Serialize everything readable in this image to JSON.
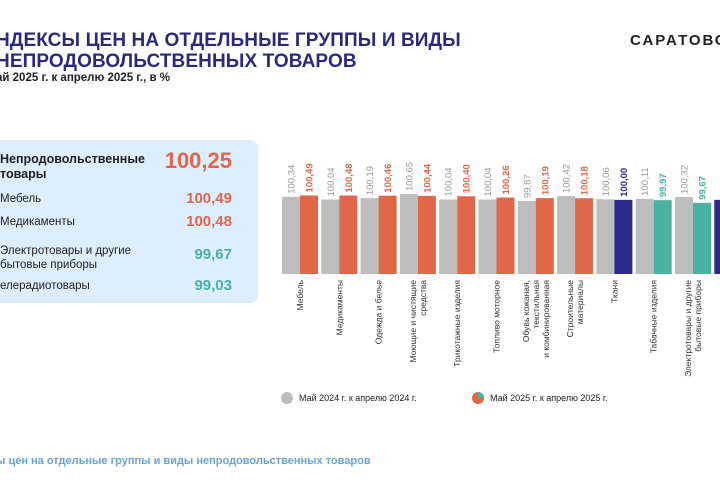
{
  "header": {
    "title": "НДЕКСЫ ЦЕН НА ОТДЕЛЬНЫЕ ГРУППЫ И ВИДЫ\nНЕПРОДОВОЛЬСТВЕННЫХ ТОВАРОВ",
    "subtitle": "ай 2025 г. к апрелю 2025 г., в %",
    "brand": "САРАТОВС"
  },
  "summary_panel": {
    "items": [
      {
        "label": "Непродовольственные\nтовары",
        "value": "100,25",
        "color": "#e0674a",
        "main": true
      },
      {
        "label": "Мебель",
        "value": "100,49",
        "color": "#e0674a"
      },
      {
        "label": "Медикаменты",
        "value": "100,48",
        "color": "#e0674a"
      },
      {
        "label": "Электротовары и другие\nбытовые приборы",
        "value": "99,67",
        "color": "#4ab3a0"
      },
      {
        "label": "елерадиотовары",
        "value": "99,03",
        "color": "#4ab3a0"
      }
    ]
  },
  "footer": {
    "text": "ы цен на отдельные группы и виды непродовольственных товаров"
  },
  "chart_data": {
    "type": "bar",
    "categories": [
      "Мебель",
      "Медикаменты",
      "Одежда и белье",
      "Моющие и чистящие\nсредства",
      "Трикотажные изделия",
      "Топливо моторное",
      "Обувь кожаная,\nтекстильная\nи комбинированная",
      "Строительные\nматериалы",
      "Ткани",
      "Табачные изделия",
      "Электротовары и другие\nбытовые приборы"
    ],
    "series": [
      {
        "name": "Май  2024 г. к  апрелю  2024 г.",
        "values": [
          100.34,
          100.04,
          100.19,
          100.65,
          100.04,
          100.04,
          99.87,
          100.42,
          100.06,
          100.11,
          100.32
        ],
        "labels": [
          "100,34",
          "100,04",
          "100,19",
          "100,65",
          "100,04",
          "100,04",
          "99,87",
          "100,42",
          "100,06",
          "100,11",
          "100,32"
        ],
        "color": "#bdbdbd"
      },
      {
        "name": "Май  2025 г. к апрелю  2025 г.",
        "values": [
          100.49,
          100.48,
          100.46,
          100.44,
          100.4,
          100.26,
          100.19,
          100.18,
          100.0,
          99.97,
          99.67
        ],
        "labels": [
          "100,49",
          "100,48",
          "100,46",
          "100,44",
          "100,40",
          "100,26",
          "100,19",
          "100,18",
          "100,00",
          "99,97",
          "99,67"
        ],
        "colors": [
          "#e0674a",
          "#e0674a",
          "#e0674a",
          "#e0674a",
          "#e0674a",
          "#e0674a",
          "#e0674a",
          "#e0674a",
          "#2f2a8c",
          "#4ab3a0",
          "#4ab3a0"
        ]
      }
    ],
    "legend_position": "bottom",
    "grid": false
  }
}
